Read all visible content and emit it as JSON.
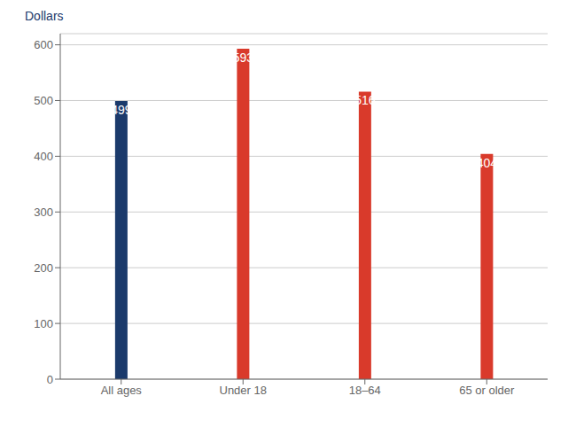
{
  "chart_data": {
    "type": "bar",
    "ylabel": "Dollars",
    "categories": [
      "All ages",
      "Under 18",
      "18–64",
      "65 or older"
    ],
    "values": [
      499,
      593,
      516,
      404
    ],
    "colors": [
      "#1b3a6b",
      "#d93a2b",
      "#d93a2b",
      "#d93a2b"
    ],
    "ylim": [
      0,
      620
    ],
    "yticks": [
      0,
      100,
      200,
      300,
      400,
      500,
      600
    ],
    "grid": true,
    "data_labels": true
  }
}
